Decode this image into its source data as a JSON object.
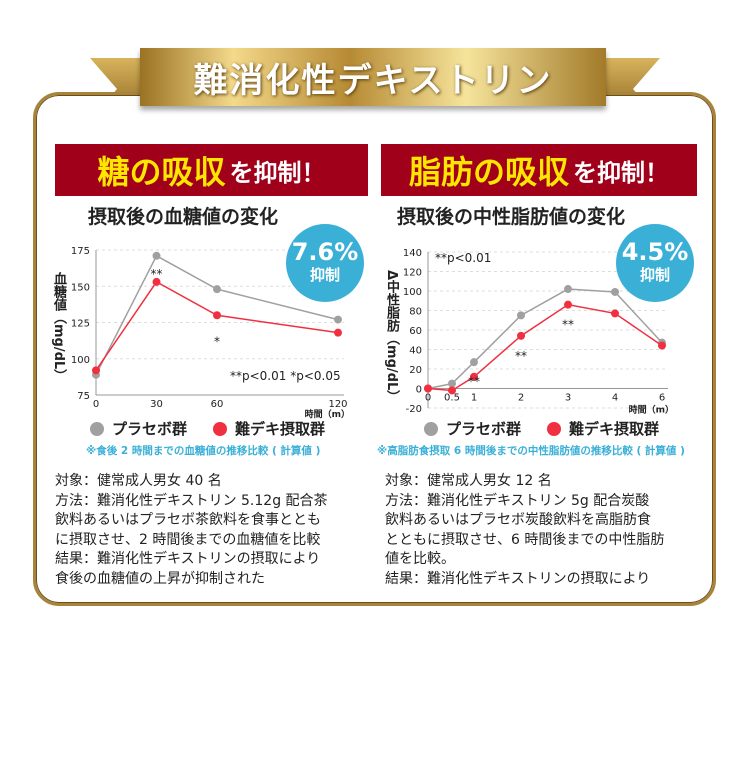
{
  "title": "難消化性デキストリン",
  "colors": {
    "placebo": "#a0a0a0",
    "treatment": "#f03040",
    "banner": "#a0001a",
    "badge": "#3bb0d6",
    "gold": "#a8843a"
  },
  "left": {
    "banner_highlight": "糖の吸収",
    "banner_rest": "を抑制！",
    "subtitle": "摂取後の血糖値の変化",
    "badge": {
      "percent": "7.6%",
      "mark": "※",
      "label": "抑制"
    },
    "legend": [
      "プラセボ群",
      "難デキ摂取群"
    ],
    "note": "※食後 2 時間までの血糖値の推移比較 ( 計算値 )",
    "desc": [
      "対象：健常成人男女 40 名",
      "方法：難消化性デキストリン 5.12g 配合茶",
      "飲料あるいはプラセボ茶飲料を食事ととも",
      "に摂取させ、2 時間後までの血糖値を比較",
      "結果：難消化性デキストリンの摂取により",
      "食後の血糖値の上昇が抑制された"
    ]
  },
  "right": {
    "banner_highlight": "脂肪の吸収",
    "banner_rest": "を抑制！",
    "subtitle": "摂取後の中性脂肪値の変化",
    "badge": {
      "percent": "4.5%",
      "mark": "※",
      "label": "抑制"
    },
    "legend": [
      "プラセボ群",
      "難デキ摂取群"
    ],
    "note": "※高脂肪食摂取 6 時間後までの中性脂肪値の推移比較 ( 計算値 )",
    "desc": [
      "対象：健常成人男女 12 名",
      "方法：難消化性デキストリン 5g 配合炭酸",
      "飲料あるいはプラセボ炭酸飲料を高脂肪食",
      "とともに摂取させ、6 時間後までの中性脂肪",
      "値を比較。",
      "結果：難消化性デキストリンの摂取により"
    ]
  },
  "chart_data": [
    {
      "type": "line",
      "ylabel": "血糖値（mg/dL）",
      "xlabel": "時間（m）",
      "x": [
        0,
        30,
        60,
        120
      ],
      "xticks": [
        "0",
        "30",
        "60",
        "120"
      ],
      "ylim": [
        75,
        175
      ],
      "yticks": [
        75,
        100,
        125,
        150,
        175
      ],
      "grid": true,
      "series": [
        {
          "name": "プラセボ群",
          "values": [
            89,
            171,
            148,
            127
          ]
        },
        {
          "name": "難デキ摂取群",
          "values": [
            92,
            153,
            130,
            118
          ]
        }
      ],
      "annotations": [
        {
          "x": 30,
          "text": "**"
        },
        {
          "x": 60,
          "text": "*"
        }
      ],
      "significance": "**p<0.01 *p<0.05"
    },
    {
      "type": "line",
      "ylabel": "Δ中性脂肪（mg/dL）",
      "xlabel": "時間（m）",
      "x": [
        0,
        0.5,
        1,
        2,
        3,
        4,
        6
      ],
      "xticks": [
        "0",
        "0.5",
        "1",
        "2",
        "3",
        "4",
        "6"
      ],
      "ylim": [
        -20,
        140
      ],
      "yticks": [
        -20,
        0,
        20,
        40,
        60,
        80,
        100,
        120,
        140
      ],
      "grid": true,
      "series": [
        {
          "name": "プラセボ群",
          "values": [
            0,
            5,
            27,
            75,
            102,
            99,
            47
          ]
        },
        {
          "name": "難デキ摂取群",
          "values": [
            0,
            -2,
            12,
            54,
            86,
            77,
            44
          ]
        }
      ],
      "annotations": [
        {
          "x": 1,
          "text": "**"
        },
        {
          "x": 2,
          "text": "**"
        },
        {
          "x": 3,
          "text": "**"
        }
      ],
      "significance": "**p<0.01"
    }
  ]
}
